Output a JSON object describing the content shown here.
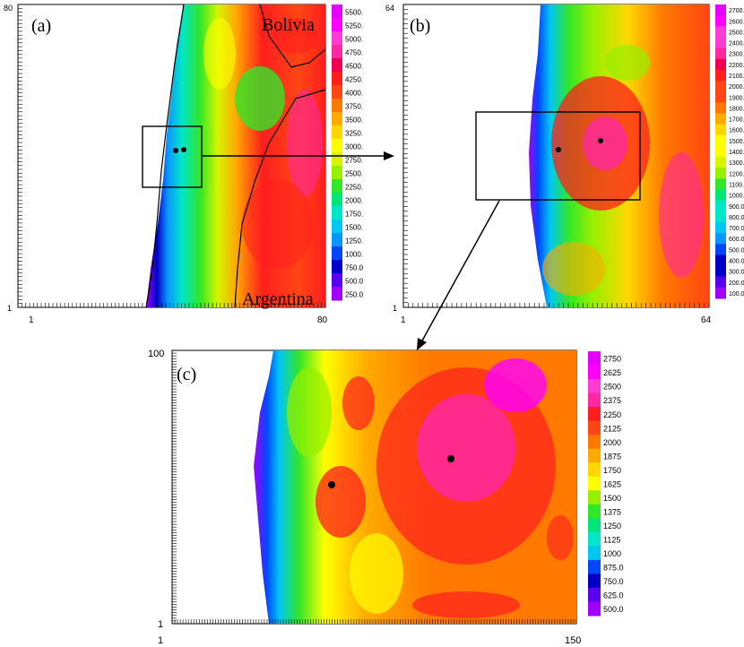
{
  "panels": {
    "a": {
      "label": "(a)",
      "x_start": "1",
      "x_end": "80",
      "y_start": "1",
      "y_end": "80",
      "regions": [
        "Bolivia",
        "Argentina"
      ],
      "colorbar": [
        "5500.",
        "5250.",
        "5000.",
        "4750.",
        "4500.",
        "4250.",
        "4000.",
        "3750.",
        "3500.",
        "3250.",
        "3000.",
        "2750.",
        "2500.",
        "2250.",
        "2000.",
        "1750.",
        "1500.",
        "1250.",
        "1000.",
        "750.0",
        "500.0",
        "250.0"
      ]
    },
    "b": {
      "label": "(b)",
      "x_start": "1",
      "x_end": "64",
      "y_start": "1",
      "y_end": "64",
      "colorbar": [
        "2700.",
        "2600.",
        "2500.",
        "2400.",
        "2300.",
        "2200.",
        "2100.",
        "2000.",
        "1900.",
        "1800.",
        "1700.",
        "1600.",
        "1500.",
        "1400.",
        "1300.",
        "1200.",
        "1100.",
        "1000.",
        "900.0",
        "800.0",
        "700.0",
        "600.0",
        "500.0",
        "400.0",
        "300.0",
        "200.0",
        "100.0"
      ]
    },
    "c": {
      "label": "(c)",
      "x_start": "1",
      "x_end": "150",
      "y_start": "1",
      "y_end": "100",
      "colorbar": [
        "2750",
        "2625",
        "2500",
        "2375",
        "2250",
        "2125",
        "2000",
        "1875",
        "1750",
        "1625",
        "1500",
        "1375",
        "1250",
        "1125",
        "1000",
        "875.0",
        "750.0",
        "625.0",
        "500.0"
      ]
    }
  },
  "palette": [
    "#a000ff",
    "#5a00f0",
    "#0000c8",
    "#0046ff",
    "#0a96ff",
    "#00c8f0",
    "#00e6c8",
    "#00e678",
    "#32e628",
    "#96f000",
    "#d7f500",
    "#ffff00",
    "#ffd700",
    "#ffaa00",
    "#ff7800",
    "#ff4614",
    "#ff1e1e",
    "#f00050",
    "#ff28a0",
    "#ff3cd2",
    "#ff00ff",
    "#e600ff"
  ]
}
